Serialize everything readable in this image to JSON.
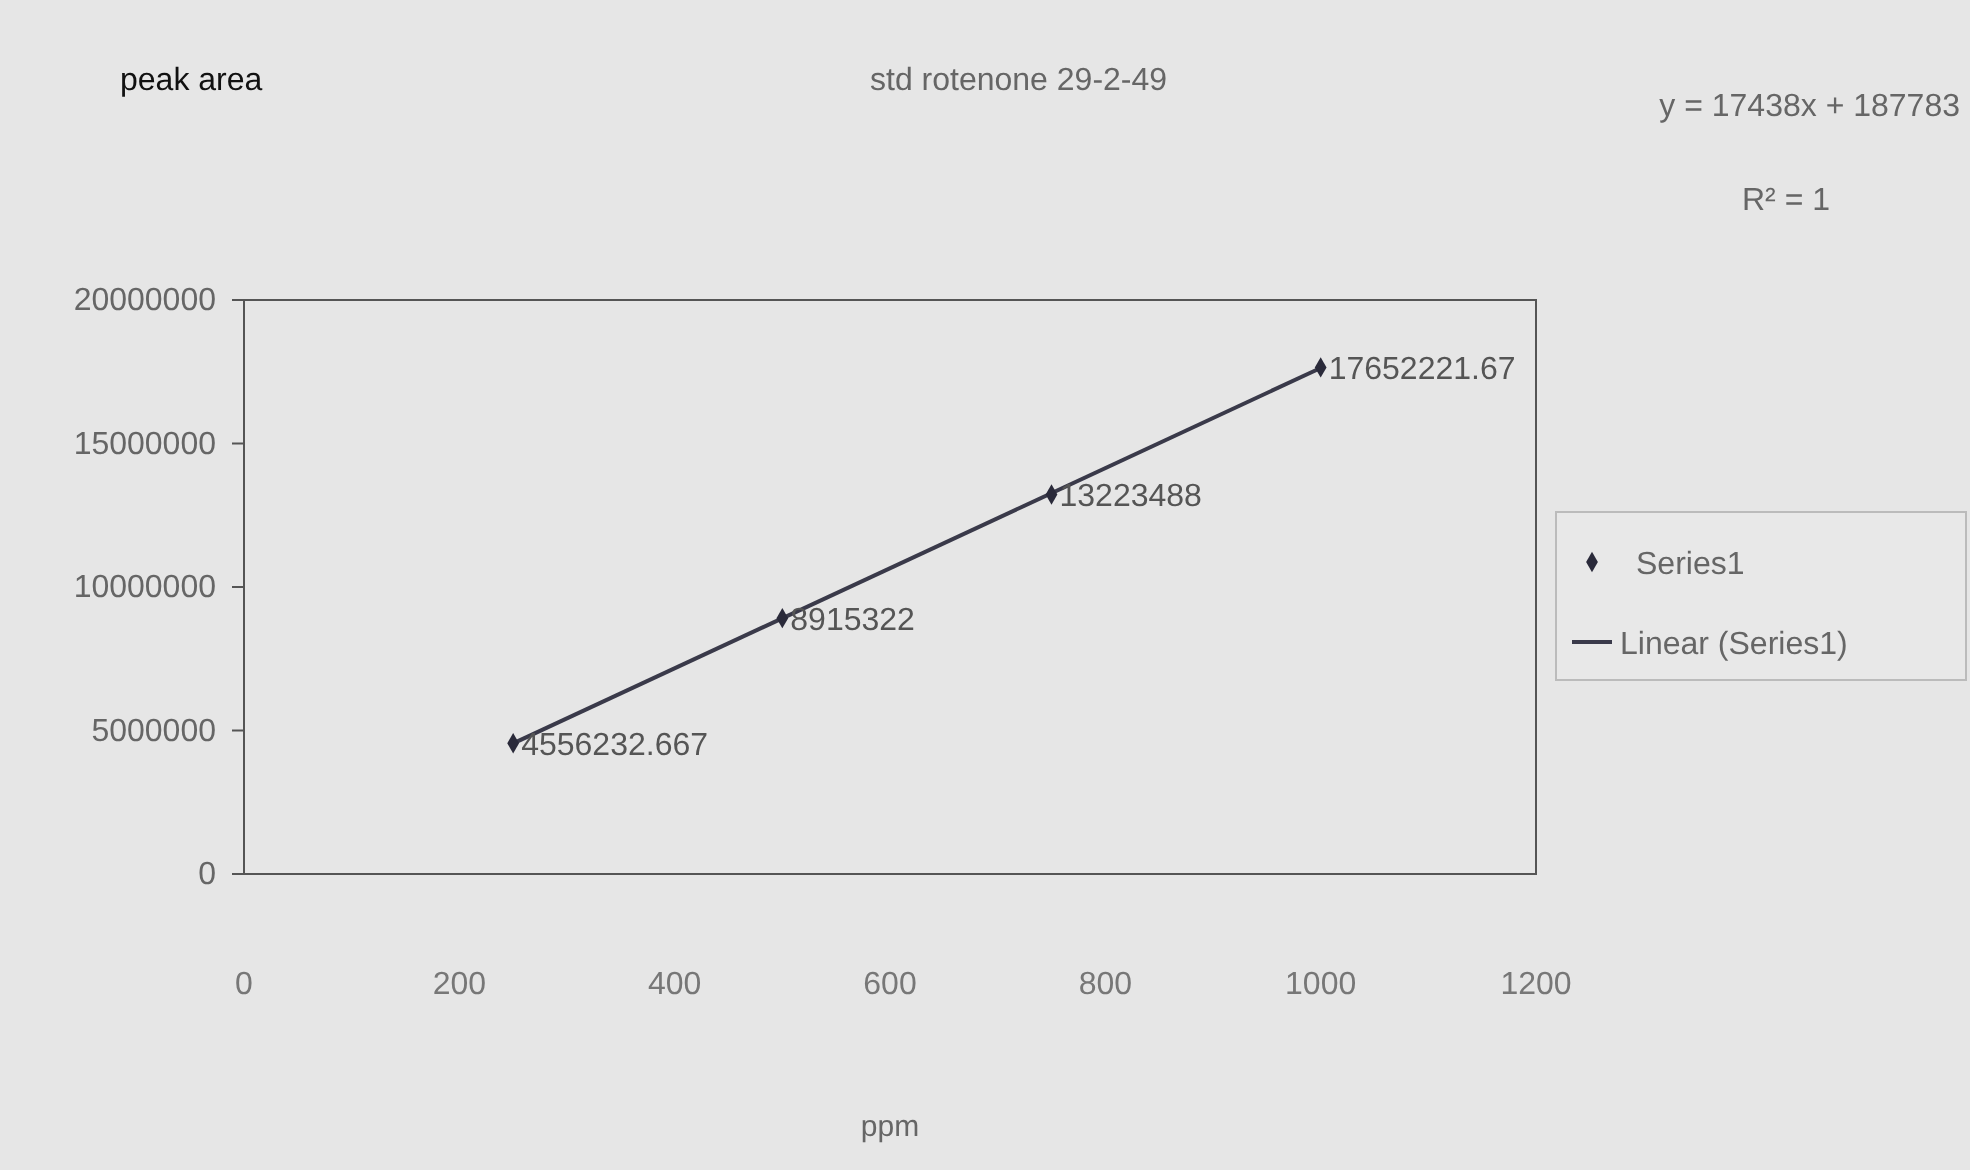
{
  "chart_data": {
    "type": "scatter",
    "title": "std rotenone 29-2-49",
    "xlabel": "ppm",
    "annotations": [
      "peak area",
      "y = 17438x + 187783",
      "R² = 1"
    ],
    "xlim": [
      0,
      1200
    ],
    "xticks": [
      0,
      200,
      400,
      600,
      800,
      1000,
      1200
    ],
    "ylim": [
      0,
      20000000
    ],
    "yticks": [
      0,
      5000000,
      10000000,
      15000000,
      20000000
    ],
    "legend": "right",
    "series": [
      {
        "name": "Series1",
        "marker": "diamond",
        "color": "#2a2a3a",
        "x": [
          250,
          500,
          750,
          1000
        ],
        "values": [
          4556232.667,
          8915322,
          13223488,
          17652221.67
        ],
        "value_labels": [
          "4556232.667",
          "8915322",
          "13223488",
          "17652221.67"
        ]
      },
      {
        "name": "Linear (Series1)",
        "type": "line",
        "marker": "none",
        "color": "#3a3a4a",
        "x": [
          250,
          1000
        ],
        "values": [
          4550000,
          17630000
        ],
        "line_style": "solid"
      }
    ]
  }
}
